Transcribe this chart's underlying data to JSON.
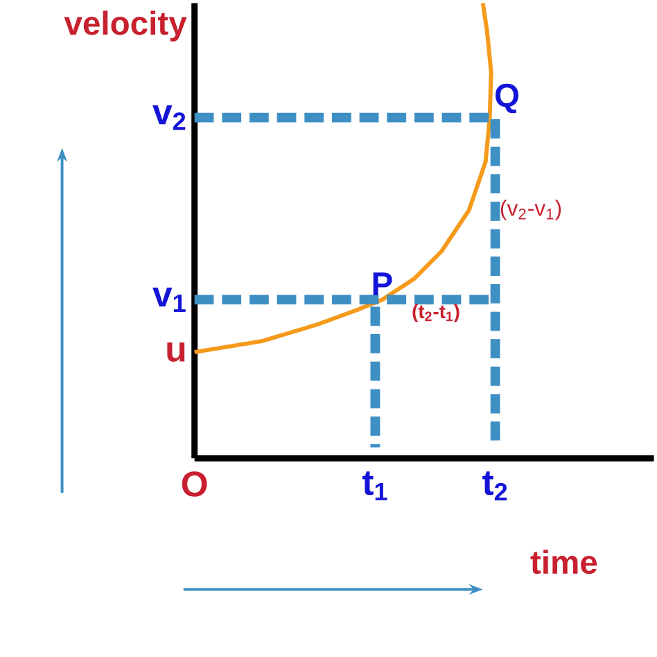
{
  "chart_data": {
    "type": "line",
    "xlabel": "time",
    "ylabel": "velocity",
    "xlim": [
      0,
      3.33
    ],
    "ylim": [
      0,
      3.3
    ],
    "marker": "none",
    "xticks": [
      {
        "value": 0,
        "label": "O"
      },
      {
        "value": 1.31,
        "label": "t$_{1}$"
      },
      {
        "value": 2.18,
        "label": "t$_{2}$"
      }
    ],
    "yticks": [
      {
        "value": 0.77,
        "label": "u"
      },
      {
        "value": 1.15,
        "label": "v$_{1}$"
      },
      {
        "value": 2.47,
        "label": "v$_{2}$"
      }
    ],
    "series": [
      {
        "color": "#f59a1b",
        "line_style": "solid",
        "x": [
          0,
          0.49,
          0.89,
          1.19,
          1.36,
          1.59,
          1.79,
          1.99,
          2.11,
          2.14,
          2.15,
          2.12,
          2.09
        ],
        "values": [
          0.77,
          0.85,
          0.97,
          1.08,
          1.15,
          1.3,
          1.5,
          1.8,
          2.15,
          2.47,
          2.8,
          3.1,
          3.3
        ]
      },
      {
        "color": "#3e8fc4",
        "line_style": "dashed",
        "x": [
          0,
          2.18,
          2.18
        ],
        "values": [
          2.47,
          2.47,
          0.13
        ]
      },
      {
        "color": "#3e8fc4",
        "line_style": "dashed",
        "x": [
          0,
          2.18
        ],
        "values": [
          1.15,
          1.15
        ]
      },
      {
        "color": "#3e8fc4",
        "line_style": "dashed",
        "x": [
          1.31,
          1.31
        ],
        "values": [
          1.1,
          0.08
        ]
      }
    ],
    "annotations": [
      {
        "text": "P",
        "x": 1.36,
        "y": 1.15
      },
      {
        "text": "Q",
        "x": 2.14,
        "y": 2.47
      },
      {
        "text": "(t$_{2}$-t$_{1}$)",
        "x": 1.75,
        "y": 1.15
      },
      {
        "text": "(v$_{2}$-v$_{1}$)",
        "x": 2.18,
        "y": 1.8
      }
    ]
  }
}
